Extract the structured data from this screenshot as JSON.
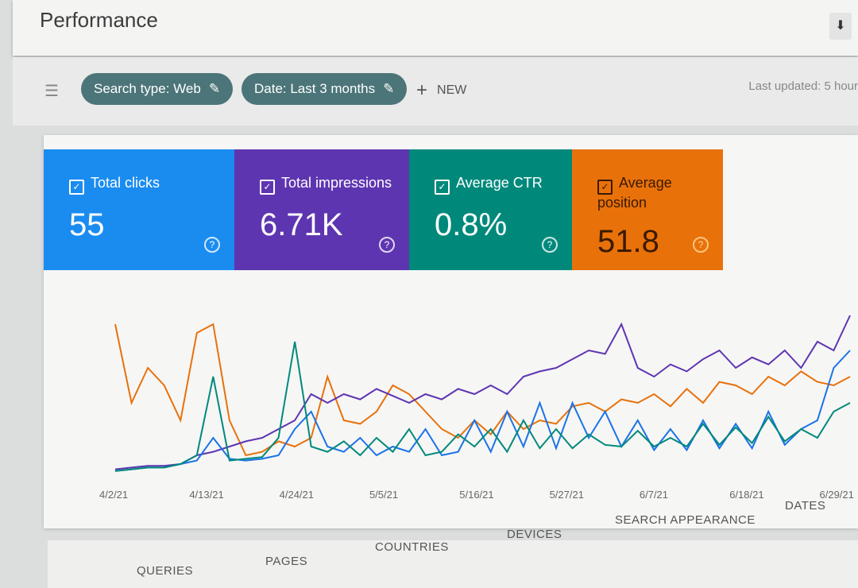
{
  "header": {
    "title": "Performance",
    "download_icon": "download-icon"
  },
  "filters": {
    "chips": [
      {
        "label": "Search type: Web"
      },
      {
        "label": "Date: Last 3 months"
      }
    ],
    "new_label": "NEW",
    "last_updated": "Last updated: 5 hour"
  },
  "metrics": [
    {
      "label": "Total clicks",
      "value": "55",
      "color": "#1a8cf0",
      "checked": true
    },
    {
      "label": "Total impressions",
      "value": "6.71K",
      "color": "#5e35b1",
      "checked": true
    },
    {
      "label": "Average CTR",
      "value": "0.8%",
      "color": "#00897b",
      "checked": true
    },
    {
      "label": "Average position",
      "value": "51.8",
      "color": "#e8710a",
      "checked": true
    }
  ],
  "chart_data": {
    "type": "line",
    "x_tick_labels": [
      "4/2/21",
      "4/13/21",
      "4/24/21",
      "5/5/21",
      "5/16/21",
      "5/27/21",
      "6/7/21",
      "6/18/21",
      "6/29/21"
    ],
    "x_range": [
      "4/2/21",
      "6/30/21"
    ],
    "grid": false,
    "series": [
      {
        "name": "Average position",
        "color": "#e8710a",
        "values": [
          85,
          40,
          60,
          50,
          30,
          80,
          85,
          30,
          10,
          12,
          18,
          15,
          20,
          55,
          30,
          28,
          35,
          50,
          45,
          35,
          25,
          20,
          30,
          22,
          35,
          25,
          30,
          28,
          38,
          40,
          35,
          42,
          40,
          45,
          38,
          48,
          40,
          52,
          50,
          45,
          55,
          50,
          58,
          52,
          50,
          55
        ]
      },
      {
        "name": "Total impressions",
        "color": "#5e35b1",
        "values": [
          2,
          3,
          4,
          4,
          5,
          10,
          12,
          15,
          18,
          20,
          25,
          30,
          45,
          40,
          45,
          42,
          48,
          44,
          40,
          45,
          42,
          48,
          45,
          50,
          45,
          55,
          58,
          60,
          65,
          70,
          68,
          85,
          60,
          55,
          62,
          58,
          65,
          70,
          60,
          66,
          62,
          70,
          60,
          75,
          70,
          90
        ]
      },
      {
        "name": "Total clicks",
        "color": "#1a73e8",
        "values": [
          1,
          2,
          3,
          3,
          5,
          7,
          20,
          8,
          7,
          8,
          10,
          25,
          35,
          15,
          12,
          20,
          10,
          15,
          12,
          25,
          10,
          12,
          30,
          12,
          35,
          15,
          40,
          14,
          40,
          20,
          35,
          15,
          30,
          13,
          25,
          13,
          30,
          14,
          28,
          14,
          35,
          16,
          25,
          30,
          60,
          70
        ]
      },
      {
        "name": "Average CTR",
        "color": "#00897b",
        "values": [
          1,
          2,
          3,
          3,
          5,
          10,
          55,
          7,
          8,
          9,
          20,
          75,
          15,
          12,
          18,
          10,
          20,
          12,
          25,
          10,
          12,
          22,
          15,
          25,
          12,
          30,
          14,
          25,
          14,
          22,
          16,
          15,
          24,
          15,
          20,
          15,
          28,
          16,
          26,
          17,
          32,
          18,
          25,
          20,
          35,
          40
        ]
      }
    ]
  },
  "tabs": [
    {
      "label": "QUERIES"
    },
    {
      "label": "PAGES"
    },
    {
      "label": "COUNTRIES"
    },
    {
      "label": "DEVICES"
    },
    {
      "label": "SEARCH APPEARANCE"
    },
    {
      "label": "DATES"
    }
  ]
}
